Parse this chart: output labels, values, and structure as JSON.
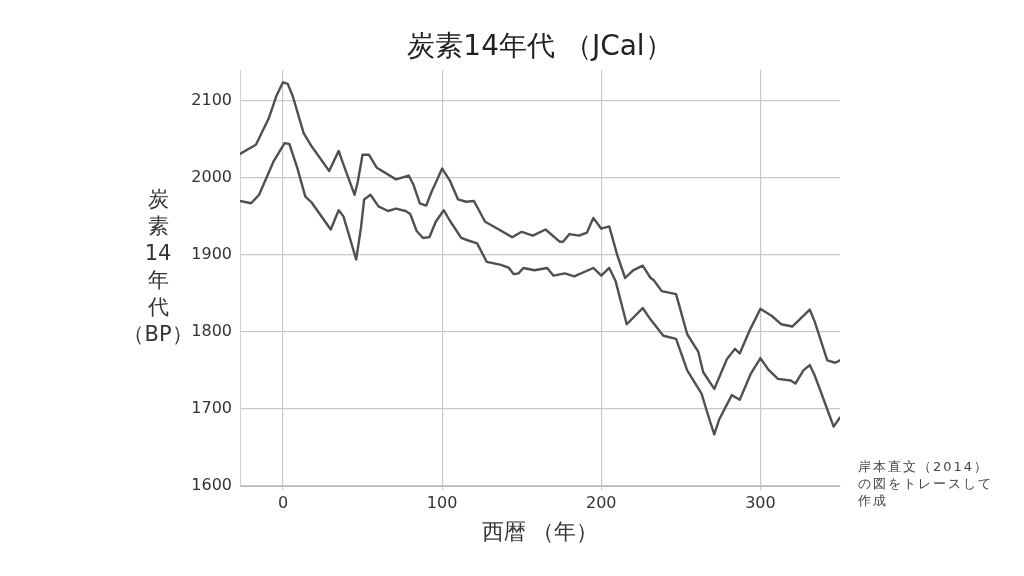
{
  "chart_data": {
    "type": "line",
    "title": "炭素14年代 （JCal）",
    "xlabel": "西暦 （年）",
    "ylabel": "炭素14年代（BP）",
    "annotations": [
      "岸本直文（2014）の図をトレースして作成"
    ],
    "xlim": [
      -27,
      350
    ],
    "xticks": [
      0,
      100,
      200,
      300
    ],
    "ylim": [
      1600,
      2140
    ],
    "yticks": [
      1600,
      1700,
      1800,
      1900,
      2000,
      2100
    ],
    "grid": true,
    "legend": false,
    "marker": "none",
    "line_style": "solid",
    "series": [
      {
        "color": "#505050",
        "x": [
          -27,
          -17,
          -9,
          -4,
          0,
          3,
          6,
          13,
          18,
          29,
          35,
          37,
          45,
          47,
          50,
          54,
          59,
          71,
          79,
          82,
          86,
          90,
          93,
          100,
          105,
          110,
          115,
          120,
          127,
          134,
          144,
          150,
          157,
          165,
          174,
          176,
          180,
          186,
          191,
          195,
          200,
          205,
          210,
          215,
          220,
          226,
          231,
          233,
          238,
          247,
          254,
          261,
          264,
          271,
          279,
          284,
          287,
          293,
          300,
          307,
          313,
          320,
          326,
          331,
          334,
          342,
          347,
          350
        ],
        "values": [
          2031,
          2043,
          2077,
          2107,
          2124,
          2122,
          2107,
          2058,
          2041,
          2009,
          2035,
          2023,
          1978,
          1995,
          2030,
          2030,
          2013,
          1998,
          2003,
          1991,
          1967,
          1964,
          1980,
          2012,
          1996,
          1972,
          1969,
          1970,
          1943,
          1935,
          1923,
          1930,
          1925,
          1933,
          1917,
          1917,
          1927,
          1925,
          1929,
          1948,
          1934,
          1937,
          1900,
          1870,
          1880,
          1886,
          1870,
          1867,
          1853,
          1849,
          1797,
          1774,
          1748,
          1726,
          1765,
          1778,
          1772,
          1801,
          1830,
          1821,
          1810,
          1807,
          1819,
          1829,
          1814,
          1763,
          1760,
          1763
        ]
      },
      {
        "color": "#505050",
        "x": [
          -27,
          -20,
          -15,
          -6,
          1,
          4,
          9,
          14,
          18,
          30,
          35,
          38,
          46,
          49,
          51,
          55,
          60,
          66,
          71,
          77,
          80,
          84,
          88,
          92,
          96,
          101,
          105,
          112,
          116,
          122,
          128,
          137,
          142,
          145,
          148,
          151,
          158,
          166,
          170,
          177,
          183,
          195,
          200,
          205,
          209,
          216,
          226,
          231,
          239,
          247,
          254,
          263,
          268,
          271,
          274,
          282,
          287,
          294,
          300,
          305,
          311,
          319,
          322,
          327,
          331,
          334,
          338,
          346,
          350
        ],
        "values": [
          1970,
          1967,
          1978,
          2021,
          2045,
          2044,
          2013,
          1976,
          1968,
          1933,
          1958,
          1950,
          1894,
          1935,
          1972,
          1978,
          1963,
          1957,
          1960,
          1957,
          1953,
          1931,
          1922,
          1923,
          1943,
          1958,
          1944,
          1922,
          1919,
          1915,
          1891,
          1887,
          1883,
          1875,
          1876,
          1883,
          1880,
          1883,
          1873,
          1876,
          1872,
          1883,
          1873,
          1883,
          1866,
          1810,
          1831,
          1816,
          1795,
          1791,
          1750,
          1720,
          1686,
          1667,
          1686,
          1718,
          1712,
          1746,
          1766,
          1751,
          1739,
          1737,
          1733,
          1750,
          1757,
          1744,
          1722,
          1677,
          1689
        ]
      }
    ]
  }
}
